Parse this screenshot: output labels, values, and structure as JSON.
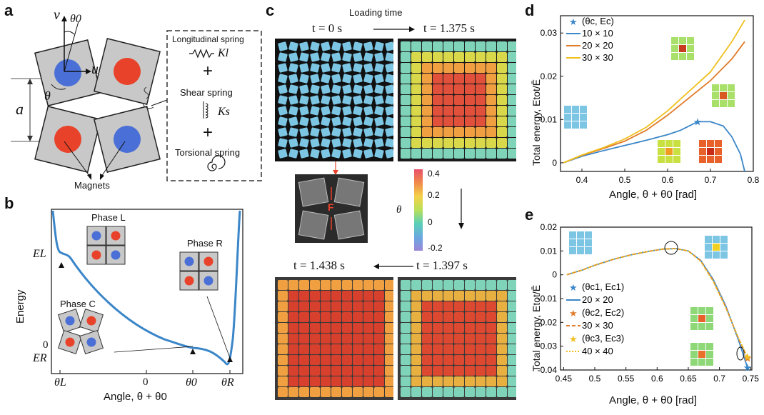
{
  "panel_labels": [
    "a",
    "b",
    "c",
    "d",
    "e"
  ],
  "panel_a": {
    "axis_v": "v",
    "axis_u": "u",
    "theta0": "θ0",
    "theta": "θ",
    "a": "a",
    "magnets": "Magnets",
    "springs": {
      "longitudinal": "Longitudinal spring",
      "kl": "Kl",
      "plus1": "+",
      "shear": "Shear spring",
      "ks": "Ks",
      "plus2": "+",
      "torsional": "Torsional spring"
    }
  },
  "panel_b": {
    "ylabel": "Energy",
    "xlabel": "Angle, θ + θ0",
    "y_ticks": [
      "EL",
      "0",
      "ER"
    ],
    "x_ticks": [
      "θL",
      "0",
      "θ0",
      "θR"
    ],
    "phase_l": "Phase L",
    "phase_r": "Phase R",
    "phase_c": "Phase C"
  },
  "panel_c": {
    "loading_time": "Loading time",
    "t0": "t = 0 s",
    "t1": "t = 1.375 s",
    "t2": "t = 1.438 s",
    "t3": "t = 1.397 s",
    "force": "F",
    "colorbar_label": "θ",
    "colorbar_ticks": [
      "0.4",
      "0.2",
      "0",
      "-0.2"
    ]
  },
  "panel_d": {
    "ylabel": "Total energy, Etot/Ē",
    "xlabel": "Angle, θ + θ0 [rad]",
    "legend": [
      "(θc, Ec)",
      "10 × 10",
      "20 × 20",
      "30 × 30"
    ],
    "y_ticks": [
      "0",
      "0.01",
      "0.02",
      "0.03"
    ],
    "x_ticks": [
      "0.4",
      "0.5",
      "0.6",
      "0.7",
      "0.8"
    ]
  },
  "panel_e": {
    "ylabel": "Total energy, Etot/Ē",
    "xlabel": "Angle, θ + θ0 [rad]",
    "legend": [
      "(θc1, Ec1)",
      "20 × 20",
      "(θc2, Ec2)",
      "30 × 30",
      "(θc3, Ec3)",
      "40 × 40"
    ],
    "y_ticks": [
      "0.02",
      "0.01",
      "0",
      "-0.01",
      "-0.02",
      "-0.03",
      "-0.04"
    ],
    "x_ticks": [
      "0.45",
      "0.5",
      "0.55",
      "0.6",
      "0.65",
      "0.7",
      "0.75"
    ]
  },
  "colors": {
    "blue_curve": "#3a86c8",
    "orange_curve": "#e07b2a",
    "yellow_curve": "#f0c020",
    "cyan_tile": "#7cc6e4",
    "red_magnet": "#e8432a",
    "blue_magnet": "#4a6fd6",
    "tile_gray": "#c8c8c8"
  },
  "chart_data": [
    {
      "type": "line",
      "panel": "d",
      "xlabel": "Angle, θ + θ0 [rad]",
      "ylabel": "Total energy, Etot/Ē",
      "xlim": [
        0.35,
        0.8
      ],
      "ylim": [
        -0.002,
        0.034
      ],
      "series": [
        {
          "name": "10 × 10",
          "color": "#3a86c8",
          "x": [
            0.357,
            0.4,
            0.45,
            0.5,
            0.55,
            0.6,
            0.63,
            0.65,
            0.67,
            0.7,
            0.73,
            0.75,
            0.77,
            0.78
          ],
          "y": [
            0,
            0.0015,
            0.0028,
            0.004,
            0.0052,
            0.0065,
            0.0075,
            0.0085,
            0.0095,
            0.0095,
            0.0085,
            0.006,
            0.002,
            -0.002
          ]
        },
        {
          "name": "20 × 20",
          "color": "#e07b2a",
          "x": [
            0.357,
            0.4,
            0.45,
            0.5,
            0.55,
            0.6,
            0.65,
            0.7,
            0.75,
            0.78
          ],
          "y": [
            0,
            0.0017,
            0.0033,
            0.005,
            0.0075,
            0.011,
            0.015,
            0.019,
            0.024,
            0.028
          ]
        },
        {
          "name": "30 × 30",
          "color": "#f0c020",
          "x": [
            0.357,
            0.4,
            0.45,
            0.5,
            0.55,
            0.6,
            0.65,
            0.7,
            0.75,
            0.78
          ],
          "y": [
            0,
            0.0018,
            0.0035,
            0.0055,
            0.0082,
            0.012,
            0.0165,
            0.021,
            0.028,
            0.033
          ]
        }
      ],
      "markers": [
        {
          "name": "(θc, Ec)",
          "x": 0.67,
          "y": 0.0095
        }
      ]
    },
    {
      "type": "line",
      "panel": "e",
      "xlabel": "Angle, θ + θ0 [rad]",
      "ylabel": "Total energy, Etot/Ē",
      "xlim": [
        0.445,
        0.752
      ],
      "ylim": [
        -0.04,
        0.02
      ],
      "series": [
        {
          "name": "20 × 20",
          "color": "#3a86c8",
          "x": [
            0.455,
            0.48,
            0.5,
            0.53,
            0.56,
            0.59,
            0.61,
            0.63,
            0.65,
            0.67,
            0.69,
            0.71,
            0.73,
            0.745
          ],
          "y": [
            0,
            0.002,
            0.004,
            0.0065,
            0.0085,
            0.01,
            0.0108,
            0.011,
            0.01,
            0.006,
            -0.002,
            -0.013,
            -0.027,
            -0.039
          ]
        },
        {
          "name": "30 × 30",
          "color": "#e07b2a",
          "x": [
            0.455,
            0.48,
            0.5,
            0.53,
            0.56,
            0.59,
            0.61,
            0.63,
            0.65,
            0.67,
            0.69,
            0.71,
            0.73,
            0.745
          ],
          "y": [
            0,
            0.002,
            0.004,
            0.0065,
            0.0085,
            0.01,
            0.0108,
            0.011,
            0.01,
            0.0058,
            -0.0025,
            -0.0135,
            -0.0265,
            -0.035
          ]
        },
        {
          "name": "40 × 40",
          "color": "#f0c020",
          "x": [
            0.455,
            0.48,
            0.5,
            0.53,
            0.56,
            0.59,
            0.61,
            0.63,
            0.65,
            0.67,
            0.69,
            0.71,
            0.73,
            0.745
          ],
          "y": [
            0,
            0.002,
            0.004,
            0.0065,
            0.0085,
            0.01,
            0.0108,
            0.011,
            0.01,
            0.0056,
            -0.0028,
            -0.0138,
            -0.0262,
            -0.0345
          ]
        }
      ],
      "markers": [
        {
          "name": "(θc1, Ec1)",
          "x": 0.745,
          "y": -0.039
        },
        {
          "name": "(θc2, Ec2)",
          "x": 0.745,
          "y": -0.035
        },
        {
          "name": "(θc3, Ec3)",
          "x": 0.745,
          "y": -0.0345
        }
      ]
    }
  ]
}
